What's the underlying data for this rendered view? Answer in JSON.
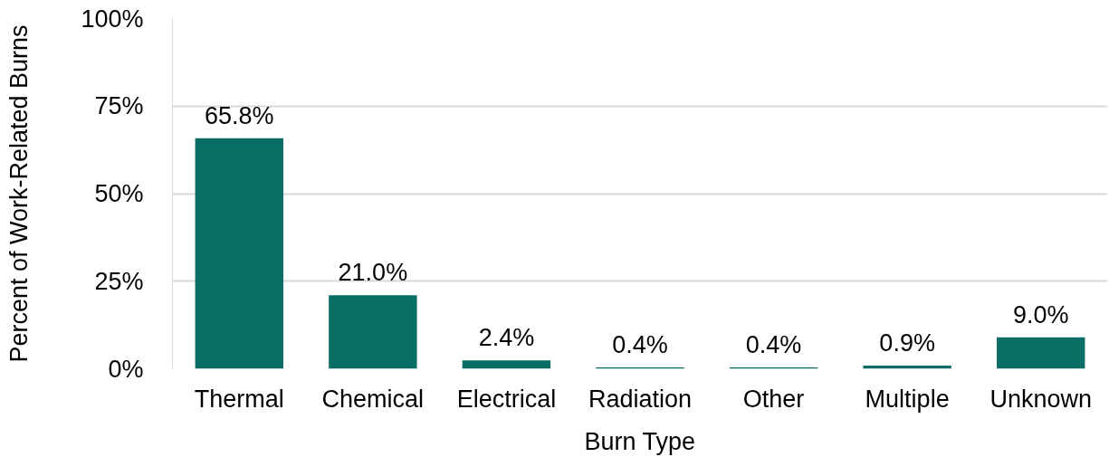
{
  "chart_data": {
    "type": "bar",
    "xlabel": "Burn Type",
    "ylabel": "Percent of Work-Related Burns",
    "categories": [
      "Thermal",
      "Chemical",
      "Electrical",
      "Radiation",
      "Other",
      "Multiple",
      "Unknown"
    ],
    "values": [
      65.8,
      21.0,
      2.4,
      0.4,
      0.4,
      0.9,
      9.0
    ],
    "value_labels": [
      "65.8%",
      "21.0%",
      "2.4%",
      "0.4%",
      "0.4%",
      "0.9%",
      "9.0%"
    ],
    "color": "#0a6e66",
    "ylim": [
      0,
      100
    ],
    "yticks": [
      {
        "value": 0,
        "label": "0%"
      },
      {
        "value": 25,
        "label": "25%"
      },
      {
        "value": 50,
        "label": "50%"
      },
      {
        "value": 75,
        "label": "75%"
      },
      {
        "value": 100,
        "label": "100%"
      }
    ],
    "grid": "y"
  }
}
